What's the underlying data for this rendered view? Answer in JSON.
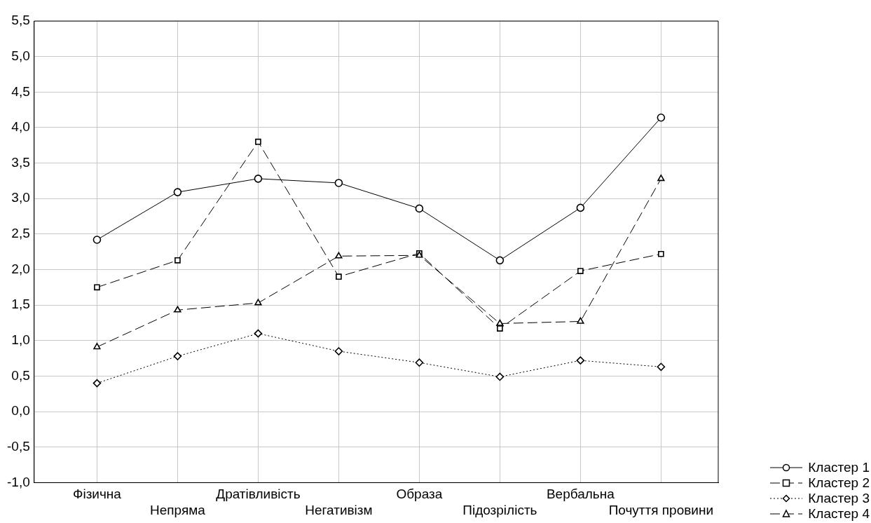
{
  "chart_data": {
    "type": "line",
    "categories": [
      "Фізична",
      "Непряма",
      "Дратівливість",
      "Негативізм",
      "Образа",
      "Підозрілість",
      "Вербальна",
      "Почуття провини"
    ],
    "series": [
      {
        "name": "Кластер 1",
        "color": "#000000",
        "marker": "circle",
        "line_style": "solid",
        "values": [
          2.42,
          3.09,
          3.28,
          3.22,
          2.86,
          2.13,
          2.87,
          4.14
        ]
      },
      {
        "name": "Кластер 2",
        "color": "#000000",
        "marker": "square",
        "line_style": "dashed",
        "values": [
          1.75,
          2.13,
          3.8,
          1.9,
          2.23,
          1.17,
          1.98,
          2.22
        ]
      },
      {
        "name": "Кластер 3",
        "color": "#000000",
        "marker": "diamond",
        "line_style": "dotted",
        "values": [
          0.4,
          0.78,
          1.1,
          0.85,
          0.69,
          0.49,
          0.72,
          0.63
        ]
      },
      {
        "name": "Кластер 4",
        "color": "#000000",
        "marker": "triangle",
        "line_style": "dashed",
        "values": [
          0.91,
          1.43,
          1.53,
          2.19,
          2.2,
          1.24,
          1.27,
          3.28
        ]
      }
    ],
    "ylim": [
      -1,
      5.5
    ],
    "yticks": [
      {
        "value": -1,
        "label": "-1,0"
      },
      {
        "value": -0.5,
        "label": "-0,5"
      },
      {
        "value": 0,
        "label": "0,0"
      },
      {
        "value": 0.5,
        "label": "0,5"
      },
      {
        "value": 1,
        "label": "1,0"
      },
      {
        "value": 1.5,
        "label": "1,5"
      },
      {
        "value": 2,
        "label": "2,0"
      },
      {
        "value": 2.5,
        "label": "2,5"
      },
      {
        "value": 3,
        "label": "3,0"
      },
      {
        "value": 3.5,
        "label": "3,5"
      },
      {
        "value": 4,
        "label": "4,0"
      },
      {
        "value": 4.5,
        "label": "4,5"
      },
      {
        "value": 5,
        "label": "5,0"
      },
      {
        "value": 5.5,
        "label": "5,5"
      }
    ],
    "grid": true,
    "legend": "bottom right"
  }
}
